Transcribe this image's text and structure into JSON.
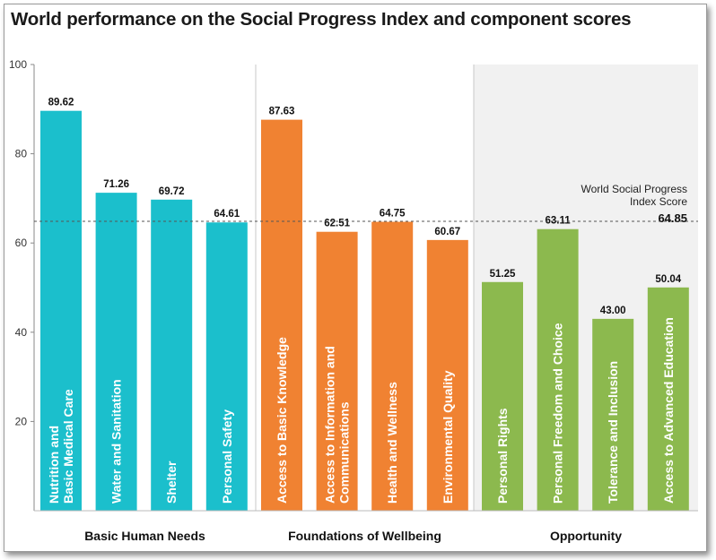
{
  "chart_data": {
    "type": "bar",
    "title": "World performance on the Social Progress Index and component scores",
    "ylim": [
      0,
      100
    ],
    "yticks": [
      20,
      40,
      60,
      80,
      100
    ],
    "groups": [
      {
        "name": "Basic Human Needs",
        "color": "#1bbfcc",
        "categories": [
          "Nutrition and Basic Medical Care",
          "Water and Sanitation",
          "Shelter",
          "Personal Safety"
        ],
        "values": [
          89.62,
          71.26,
          69.72,
          64.61
        ],
        "value_labels": [
          "89.62",
          "71.26",
          "69.72",
          "64.61"
        ]
      },
      {
        "name": "Foundations of Wellbeing",
        "color": "#f08232",
        "categories": [
          "Access to Basic Knowledge",
          "Access to Information and Communications",
          "Health and Wellness",
          "Environmental Quality"
        ],
        "values": [
          87.63,
          62.51,
          64.75,
          60.67
        ],
        "value_labels": [
          "87.63",
          "62.51",
          "64.75",
          "60.67"
        ]
      },
      {
        "name": "Opportunity",
        "color": "#8cb94e",
        "categories": [
          "Personal Rights",
          "Personal Freedom and Choice",
          "Tolerance and Inclusion",
          "Access to Advanced Education"
        ],
        "values": [
          51.25,
          63.11,
          43.0,
          50.04
        ],
        "value_labels": [
          "51.25",
          "63.11",
          "43.00",
          "50.04"
        ]
      }
    ],
    "reference_line": {
      "label_line1": "World Social Progress",
      "label_line2": "Index Score",
      "value": 64.85,
      "value_label": "64.85"
    },
    "grid": false,
    "legend": "none"
  }
}
